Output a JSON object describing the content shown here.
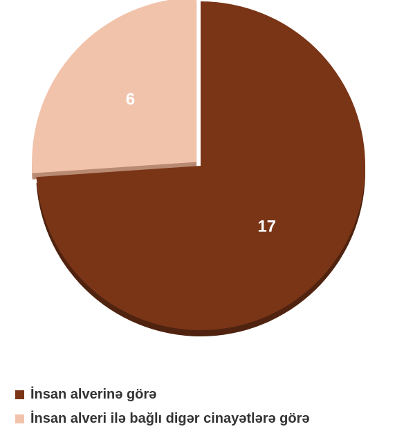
{
  "chart_data": {
    "type": "pie",
    "categories": [
      "İnsan alverinə görə",
      "İnsan alveri ilə bağlı digər cinayətlərə görə"
    ],
    "values": [
      17,
      6
    ],
    "data_labels": [
      "17",
      "6"
    ],
    "colors": [
      "#7a3517",
      "#f2c3ab"
    ],
    "shadow_colors": [
      "#4f230f",
      "#b98a72"
    ],
    "exploded_slice": 1,
    "legend_position": "bottom-left",
    "title": ""
  }
}
